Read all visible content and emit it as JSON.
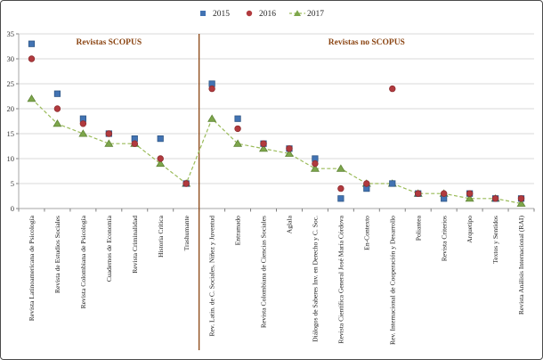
{
  "chart_data": {
    "type": "scatter",
    "title": "",
    "legend_position": "top-center",
    "grid": true,
    "ylim": [
      0,
      35
    ],
    "yticks": [
      0,
      5,
      10,
      15,
      20,
      25,
      30,
      35
    ],
    "sections": [
      {
        "label": "Revistas SCOPUS",
        "count": 7
      },
      {
        "label": "Revistas no SCOPUS",
        "count": 13
      }
    ],
    "section_label_color": "#8B4513",
    "divider_color": "#8B4513",
    "categories": [
      "Revista Latinoamericana de Psicología",
      "Revista de Estudios Sociales",
      "Revista Colombiana de Psicología",
      "Cuadernos de Economía",
      "Revista Criminalidad",
      "Historia Crítica",
      "Trashumante",
      "Rev. Latin. de C. Sociales, Niñez y Juventud",
      "Entramado",
      "Revista Colombiana de Ciencias Sociales",
      "Aglala",
      "Diálogos de Saberes Inv. en Derecho y C. Soc.",
      "Revista Científica General José María Córdova",
      "En-Contexto",
      "Rev. Internacional de Cooperación y Desarrollo",
      "Poliantea",
      "Revista Criterios",
      "Arquetipo",
      "Textos y Sentidos",
      "Revista Análisis Internacional (RAI)"
    ],
    "series": [
      {
        "name": "2015",
        "marker": "square",
        "color": "#4273B3",
        "stroke": "#2E5685",
        "line": "none",
        "values": [
          33,
          23,
          18,
          15,
          14,
          14,
          5,
          25,
          18,
          13,
          12,
          10,
          2,
          4,
          5,
          3,
          2,
          3,
          2,
          2
        ]
      },
      {
        "name": "2016",
        "marker": "circle",
        "color": "#B13A3E",
        "stroke": "#8F2D30",
        "line": "none",
        "values": [
          30,
          20,
          17,
          15,
          13,
          10,
          5,
          24,
          16,
          13,
          12,
          9,
          4,
          5,
          24,
          3,
          3,
          3,
          2,
          2
        ]
      },
      {
        "name": "2017",
        "marker": "triangle",
        "color": "#7DA64B",
        "stroke": "#5F8436",
        "line": "dashed",
        "line_color": "#9ABB59",
        "values": [
          22,
          17,
          15,
          13,
          13,
          9,
          5,
          18,
          13,
          12,
          11,
          8,
          8,
          5,
          5,
          3,
          3,
          2,
          2,
          1
        ]
      }
    ]
  }
}
